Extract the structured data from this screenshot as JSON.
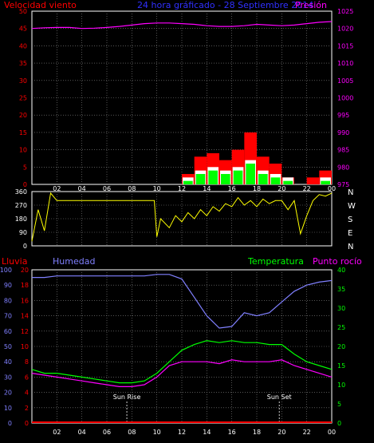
{
  "header": {
    "left_title": "Velocidad viento",
    "center_title": "24 hora gráficado - 28 Septiembre 2014",
    "right_title": "Presión"
  },
  "colors": {
    "wind": "#ff0000",
    "gust_fill": "#ffffff",
    "avg_fill": "#00ff00",
    "pressure": "#ff00ff",
    "direction": "#ffff00",
    "rain": "#ff0000",
    "humidity": "#8080ff",
    "temperature": "#00ff00",
    "dewpoint": "#ff00ff",
    "grid": "#8a8a8a"
  },
  "chart_data": [
    {
      "type": "line",
      "panel": "wind-pressure",
      "y_left_ticks": [
        "0",
        "5",
        "10",
        "15",
        "20",
        "25",
        "30",
        "35",
        "40",
        "45",
        "50"
      ],
      "y_right_ticks": [
        "975",
        "980",
        "985",
        "990",
        "995",
        "1000",
        "1005",
        "1010",
        "1015",
        "1020",
        "1025"
      ],
      "x_ticks": [
        "02",
        "04",
        "06",
        "08",
        "10",
        "12",
        "14",
        "16",
        "18",
        "20",
        "22",
        "00"
      ],
      "ylim_left": [
        0,
        50
      ],
      "ylim_right": [
        975,
        1025
      ],
      "hours": [
        0,
        1,
        2,
        3,
        4,
        5,
        6,
        7,
        8,
        9,
        10,
        11,
        12,
        13,
        14,
        15,
        16,
        17,
        18,
        19,
        20,
        21,
        22,
        23,
        24
      ],
      "pressure": [
        1020,
        1020.2,
        1020.3,
        1020.3,
        1020,
        1020.1,
        1020.3,
        1020.6,
        1021,
        1021.4,
        1021.6,
        1021.6,
        1021.4,
        1021.2,
        1020.8,
        1020.6,
        1020.6,
        1020.8,
        1021.2,
        1021,
        1020.8,
        1021,
        1021.4,
        1021.8,
        1022
      ],
      "wind_max": [
        0,
        0,
        0,
        0,
        0,
        0,
        0,
        0,
        0,
        0,
        0,
        0,
        3,
        8,
        9,
        7,
        10,
        15,
        8,
        6,
        2,
        0,
        2,
        4,
        3
      ],
      "wind_avg": [
        0,
        0,
        0,
        0,
        0,
        0,
        0,
        0,
        0,
        0,
        0,
        0,
        1,
        3,
        4,
        3,
        4,
        6,
        3,
        2,
        1,
        0,
        0,
        1,
        1
      ]
    },
    {
      "type": "scatter",
      "panel": "wind-direction",
      "y_ticks": [
        "360",
        "270",
        "180",
        "90",
        "0"
      ],
      "compass_labels": [
        "N",
        "W",
        "S",
        "E",
        "N"
      ],
      "x_ticks": [
        "02",
        "04",
        "06",
        "08",
        "10",
        "12",
        "14",
        "16",
        "18",
        "20",
        "22",
        "00"
      ],
      "ylim": [
        0,
        360
      ],
      "hours": [
        0,
        0.5,
        1,
        1.5,
        2,
        4,
        6,
        8,
        9,
        9.8,
        10,
        10.3,
        11,
        11.5,
        12,
        12.5,
        13,
        13.5,
        14,
        14.5,
        15,
        15.5,
        16,
        16.5,
        17,
        17.5,
        18,
        18.5,
        19,
        19.5,
        20,
        20.5,
        21,
        21.5,
        22,
        22.5,
        23,
        23.5,
        24
      ],
      "direction": [
        30,
        240,
        100,
        350,
        300,
        300,
        300,
        300,
        300,
        300,
        60,
        180,
        120,
        200,
        160,
        220,
        180,
        240,
        200,
        260,
        230,
        280,
        260,
        320,
        270,
        300,
        260,
        310,
        280,
        300,
        300,
        240,
        300,
        80,
        200,
        300,
        340,
        330,
        350
      ]
    },
    {
      "type": "line",
      "panel": "humidity-temperature",
      "labels": [
        "Lluvia",
        "Humedad",
        "Temperatura",
        "Punto rocío"
      ],
      "y_left_rain_ticks": [
        "0",
        "2",
        "4",
        "6",
        "8",
        "10",
        "12",
        "14",
        "16",
        "18",
        "20"
      ],
      "y_left_hum_ticks": [
        "0",
        "10",
        "20",
        "30",
        "40",
        "50",
        "60",
        "70",
        "80",
        "90",
        "100"
      ],
      "y_right_ticks": [
        "0",
        "5",
        "10",
        "15",
        "20",
        "25",
        "30",
        "35",
        "40"
      ],
      "x_ticks": [
        "02",
        "04",
        "06",
        "08",
        "10",
        "12",
        "14",
        "16",
        "18",
        "20",
        "22",
        "00"
      ],
      "ylim_humidity": [
        0,
        100
      ],
      "ylim_temperature": [
        0,
        40
      ],
      "hours": [
        0,
        1,
        2,
        3,
        4,
        5,
        6,
        7,
        8,
        9,
        10,
        11,
        12,
        13,
        14,
        15,
        16,
        17,
        18,
        19,
        20,
        21,
        22,
        23,
        24
      ],
      "humidity": [
        95,
        95,
        96,
        96,
        96,
        96,
        96,
        96,
        96,
        96,
        97,
        97,
        94,
        82,
        70,
        62,
        63,
        72,
        70,
        72,
        79,
        86,
        90,
        92,
        93
      ],
      "temperature": [
        14,
        13,
        13,
        12.5,
        12,
        11.5,
        11,
        10.5,
        10.5,
        11,
        13,
        16,
        19,
        20.5,
        21.5,
        21,
        21.5,
        21,
        21,
        20.5,
        20.5,
        18,
        16,
        15,
        14
      ],
      "dewpoint": [
        13,
        12.5,
        12,
        11.5,
        11,
        10.5,
        10,
        9.5,
        9.5,
        10,
        12,
        15,
        16,
        16,
        16,
        15.5,
        16.5,
        16,
        16,
        16,
        16.5,
        15,
        14,
        13,
        12
      ],
      "rain": [
        0,
        0,
        0,
        0,
        0,
        0,
        0,
        0,
        0,
        0,
        0,
        0,
        0,
        0,
        0,
        0,
        0,
        0,
        0,
        0,
        0,
        0,
        0,
        0,
        0
      ],
      "sunrise_hour": 7.6,
      "sunset_hour": 19.8,
      "sunrise_label": "Sun Rise",
      "sunset_label": "Sun Set"
    }
  ]
}
